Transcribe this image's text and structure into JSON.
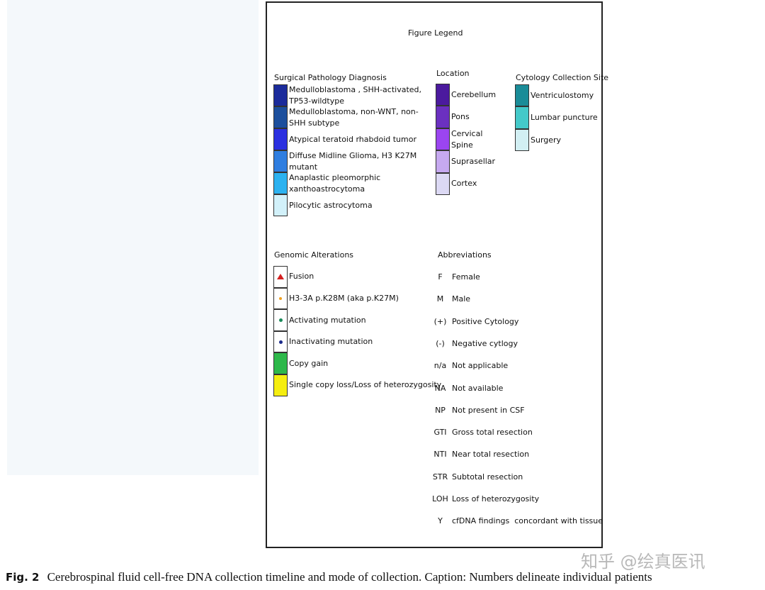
{
  "figure": {
    "title": "Figure Legend",
    "pathology": {
      "title": "Surgical Pathology Diagnosis",
      "items": [
        {
          "label": "Medulloblastoma , SHH-activated, TP53-wildtype",
          "color": "#1b2b9b"
        },
        {
          "label": "Medulloblastoma, non-WNT, non-SHH subtype",
          "color": "#1c4f9d"
        },
        {
          "label": "Atypical teratoid rhabdoid tumor",
          "color": "#2b30e0"
        },
        {
          "label": "Diffuse Midline Glioma, H3 K27M mutant",
          "color": "#2f7ee0"
        },
        {
          "label": "Anaplastic pleomorphic xanthoastrocytoma",
          "color": "#2cb2f0"
        },
        {
          "label": "Pilocytic astrocytoma",
          "color": "#d2f1fa"
        }
      ]
    },
    "location": {
      "title": "Location",
      "items": [
        {
          "label": "Cerebellum",
          "color": "#4b1a9e"
        },
        {
          "label": "Pons",
          "color": "#6b30c0"
        },
        {
          "label": "Cervical Spine",
          "color": "#9b45f0"
        },
        {
          "label": "Suprasellar",
          "color": "#c6a9f0"
        },
        {
          "label": "Cortex",
          "color": "#dcd9f4"
        }
      ]
    },
    "cytology": {
      "title": "Cytology Collection Site",
      "items": [
        {
          "label": "Ventriculostomy",
          "color": "#1a8c98"
        },
        {
          "label": "Lumbar puncture",
          "color": "#44c9c9"
        },
        {
          "label": "Surgery",
          "color": "#d2eff3"
        }
      ]
    },
    "genomic": {
      "title": "Genomic Alterations",
      "items": [
        {
          "label": "Fusion",
          "color": "#d42020"
        },
        {
          "label": "H3-3A p.K28M (aka p.K27M)",
          "color": "#f0a020"
        },
        {
          "label": "Activating mutation",
          "color": "#1a8a5a"
        },
        {
          "label": "Inactivating mutation",
          "color": "#1a2a8a"
        },
        {
          "label": "Copy gain",
          "color": "#2db84a"
        },
        {
          "label": "Single copy loss/Loss of heterozygosity",
          "color": "#f5ee10"
        }
      ]
    },
    "abbreviations": {
      "title": "Abbreviations",
      "items": [
        {
          "abbr": "F",
          "meaning": "Female"
        },
        {
          "abbr": "M",
          "meaning": "Male"
        },
        {
          "abbr": "(+)",
          "meaning": "Positive Cytology"
        },
        {
          "abbr": "(-)",
          "meaning": "Negative cytlogy"
        },
        {
          "abbr": "n/a",
          "meaning": "Not applicable"
        },
        {
          "abbr": "NA",
          "meaning": "Not available"
        },
        {
          "abbr": "NP",
          "meaning": "Not present in CSF"
        },
        {
          "abbr": "GTI",
          "meaning": "Gross total resection"
        },
        {
          "abbr": "NTI",
          "meaning": "Near total resection"
        },
        {
          "abbr": "STR",
          "meaning": "Subtotal resection"
        },
        {
          "abbr": "LOH",
          "meaning": "Loss of heterozygosity"
        },
        {
          "abbr": "Y",
          "meaning": "cfDNA findings  concordant with tissue"
        }
      ]
    }
  },
  "caption": {
    "label": "Fig. 2",
    "text": "Cerebrospinal fluid cell-free DNA collection timeline and mode of collection. Caption: Numbers delineate individual patients"
  },
  "watermark": "知乎 @绘真医讯"
}
